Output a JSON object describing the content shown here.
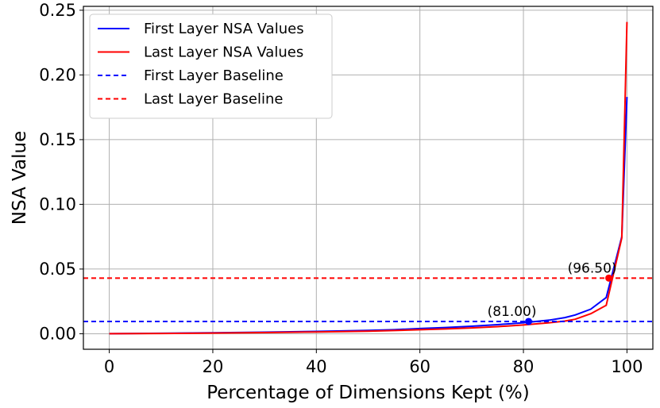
{
  "chart_data": {
    "type": "line",
    "xlabel": "Percentage of Dimensions Kept (%)",
    "ylabel": "NSA Value",
    "xlim": [
      -5,
      105
    ],
    "ylim": [
      -0.012,
      0.253
    ],
    "xticks": [
      0,
      20,
      40,
      60,
      80,
      100
    ],
    "xtick_labels": [
      "0",
      "20",
      "40",
      "60",
      "80",
      "100"
    ],
    "yticks": [
      0.0,
      0.05,
      0.1,
      0.15,
      0.2,
      0.25
    ],
    "ytick_labels": [
      "0.00",
      "0.05",
      "0.10",
      "0.15",
      "0.20",
      "0.25"
    ],
    "grid": true,
    "legend_position": "top-left",
    "series": [
      {
        "name": "First Layer NSA Values",
        "color": "#0000ff",
        "style": "solid",
        "x": [
          0,
          10,
          20,
          30,
          40,
          50,
          55,
          60,
          65,
          70,
          75,
          80,
          85,
          88,
          90,
          93,
          96,
          99,
          100
        ],
        "y": [
          0.0,
          0.0003,
          0.0007,
          0.0012,
          0.0018,
          0.0026,
          0.0031,
          0.004,
          0.0048,
          0.0058,
          0.007,
          0.0085,
          0.0105,
          0.0125,
          0.0145,
          0.019,
          0.028,
          0.075,
          0.183
        ]
      },
      {
        "name": "Last Layer NSA Values",
        "color": "#ff0000",
        "style": "solid",
        "x": [
          0,
          10,
          20,
          30,
          40,
          50,
          55,
          60,
          65,
          70,
          75,
          80,
          85,
          88,
          90,
          93,
          96,
          99,
          100
        ],
        "y": [
          0.0,
          0.0002,
          0.0005,
          0.0009,
          0.0014,
          0.002,
          0.0025,
          0.0031,
          0.0037,
          0.0045,
          0.0055,
          0.0068,
          0.0085,
          0.0098,
          0.0112,
          0.0155,
          0.022,
          0.074,
          0.241
        ]
      },
      {
        "name": "First Layer Baseline",
        "color": "#0000ff",
        "style": "dashed",
        "y_constant": 0.0095
      },
      {
        "name": "Last Layer Baseline",
        "color": "#ff0000",
        "style": "dashed",
        "y_constant": 0.043
      }
    ],
    "annotations": [
      {
        "text": "(81.00)",
        "x": 81.0,
        "y": 0.0095,
        "color": "#0000ff"
      },
      {
        "text": "(96.50)",
        "x": 96.5,
        "y": 0.043,
        "color": "#ff0000"
      }
    ]
  }
}
